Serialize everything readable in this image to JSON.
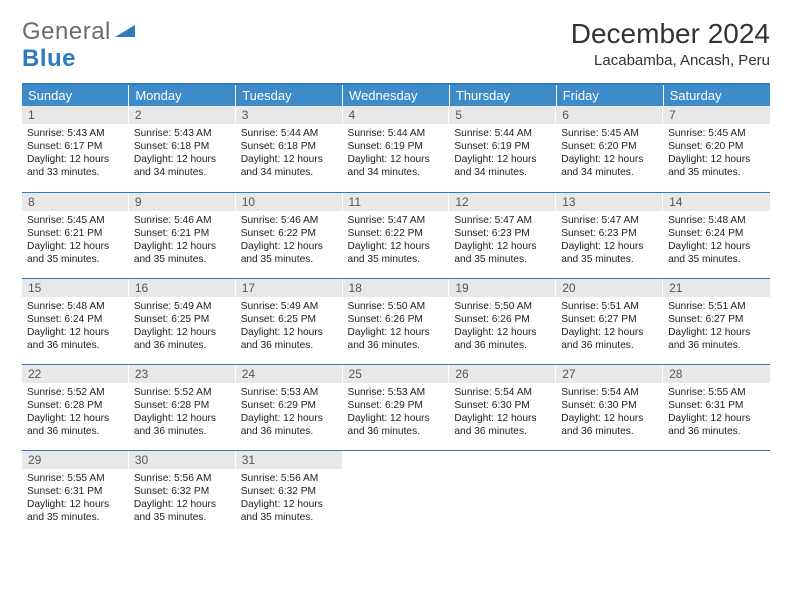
{
  "brand": {
    "part1": "General",
    "part2": "Blue"
  },
  "title": "December 2024",
  "location": "Lacabamba, Ancash, Peru",
  "colors": {
    "header_bg": "#3d8bc9",
    "rule": "#2f7bbf",
    "daynum_bg": "#e8e8e8",
    "text": "#222222",
    "logo_gray": "#6b6b6b"
  },
  "weekdays": [
    "Sunday",
    "Monday",
    "Tuesday",
    "Wednesday",
    "Thursday",
    "Friday",
    "Saturday"
  ],
  "days": [
    {
      "n": "1",
      "sr": "5:43 AM",
      "ss": "6:17 PM",
      "dl": "12 hours and 33 minutes."
    },
    {
      "n": "2",
      "sr": "5:43 AM",
      "ss": "6:18 PM",
      "dl": "12 hours and 34 minutes."
    },
    {
      "n": "3",
      "sr": "5:44 AM",
      "ss": "6:18 PM",
      "dl": "12 hours and 34 minutes."
    },
    {
      "n": "4",
      "sr": "5:44 AM",
      "ss": "6:19 PM",
      "dl": "12 hours and 34 minutes."
    },
    {
      "n": "5",
      "sr": "5:44 AM",
      "ss": "6:19 PM",
      "dl": "12 hours and 34 minutes."
    },
    {
      "n": "6",
      "sr": "5:45 AM",
      "ss": "6:20 PM",
      "dl": "12 hours and 34 minutes."
    },
    {
      "n": "7",
      "sr": "5:45 AM",
      "ss": "6:20 PM",
      "dl": "12 hours and 35 minutes."
    },
    {
      "n": "8",
      "sr": "5:45 AM",
      "ss": "6:21 PM",
      "dl": "12 hours and 35 minutes."
    },
    {
      "n": "9",
      "sr": "5:46 AM",
      "ss": "6:21 PM",
      "dl": "12 hours and 35 minutes."
    },
    {
      "n": "10",
      "sr": "5:46 AM",
      "ss": "6:22 PM",
      "dl": "12 hours and 35 minutes."
    },
    {
      "n": "11",
      "sr": "5:47 AM",
      "ss": "6:22 PM",
      "dl": "12 hours and 35 minutes."
    },
    {
      "n": "12",
      "sr": "5:47 AM",
      "ss": "6:23 PM",
      "dl": "12 hours and 35 minutes."
    },
    {
      "n": "13",
      "sr": "5:47 AM",
      "ss": "6:23 PM",
      "dl": "12 hours and 35 minutes."
    },
    {
      "n": "14",
      "sr": "5:48 AM",
      "ss": "6:24 PM",
      "dl": "12 hours and 35 minutes."
    },
    {
      "n": "15",
      "sr": "5:48 AM",
      "ss": "6:24 PM",
      "dl": "12 hours and 36 minutes."
    },
    {
      "n": "16",
      "sr": "5:49 AM",
      "ss": "6:25 PM",
      "dl": "12 hours and 36 minutes."
    },
    {
      "n": "17",
      "sr": "5:49 AM",
      "ss": "6:25 PM",
      "dl": "12 hours and 36 minutes."
    },
    {
      "n": "18",
      "sr": "5:50 AM",
      "ss": "6:26 PM",
      "dl": "12 hours and 36 minutes."
    },
    {
      "n": "19",
      "sr": "5:50 AM",
      "ss": "6:26 PM",
      "dl": "12 hours and 36 minutes."
    },
    {
      "n": "20",
      "sr": "5:51 AM",
      "ss": "6:27 PM",
      "dl": "12 hours and 36 minutes."
    },
    {
      "n": "21",
      "sr": "5:51 AM",
      "ss": "6:27 PM",
      "dl": "12 hours and 36 minutes."
    },
    {
      "n": "22",
      "sr": "5:52 AM",
      "ss": "6:28 PM",
      "dl": "12 hours and 36 minutes."
    },
    {
      "n": "23",
      "sr": "5:52 AM",
      "ss": "6:28 PM",
      "dl": "12 hours and 36 minutes."
    },
    {
      "n": "24",
      "sr": "5:53 AM",
      "ss": "6:29 PM",
      "dl": "12 hours and 36 minutes."
    },
    {
      "n": "25",
      "sr": "5:53 AM",
      "ss": "6:29 PM",
      "dl": "12 hours and 36 minutes."
    },
    {
      "n": "26",
      "sr": "5:54 AM",
      "ss": "6:30 PM",
      "dl": "12 hours and 36 minutes."
    },
    {
      "n": "27",
      "sr": "5:54 AM",
      "ss": "6:30 PM",
      "dl": "12 hours and 36 minutes."
    },
    {
      "n": "28",
      "sr": "5:55 AM",
      "ss": "6:31 PM",
      "dl": "12 hours and 36 minutes."
    },
    {
      "n": "29",
      "sr": "5:55 AM",
      "ss": "6:31 PM",
      "dl": "12 hours and 35 minutes."
    },
    {
      "n": "30",
      "sr": "5:56 AM",
      "ss": "6:32 PM",
      "dl": "12 hours and 35 minutes."
    },
    {
      "n": "31",
      "sr": "5:56 AM",
      "ss": "6:32 PM",
      "dl": "12 hours and 35 minutes."
    }
  ],
  "labels": {
    "sunrise": "Sunrise:",
    "sunset": "Sunset:",
    "daylight": "Daylight:"
  }
}
